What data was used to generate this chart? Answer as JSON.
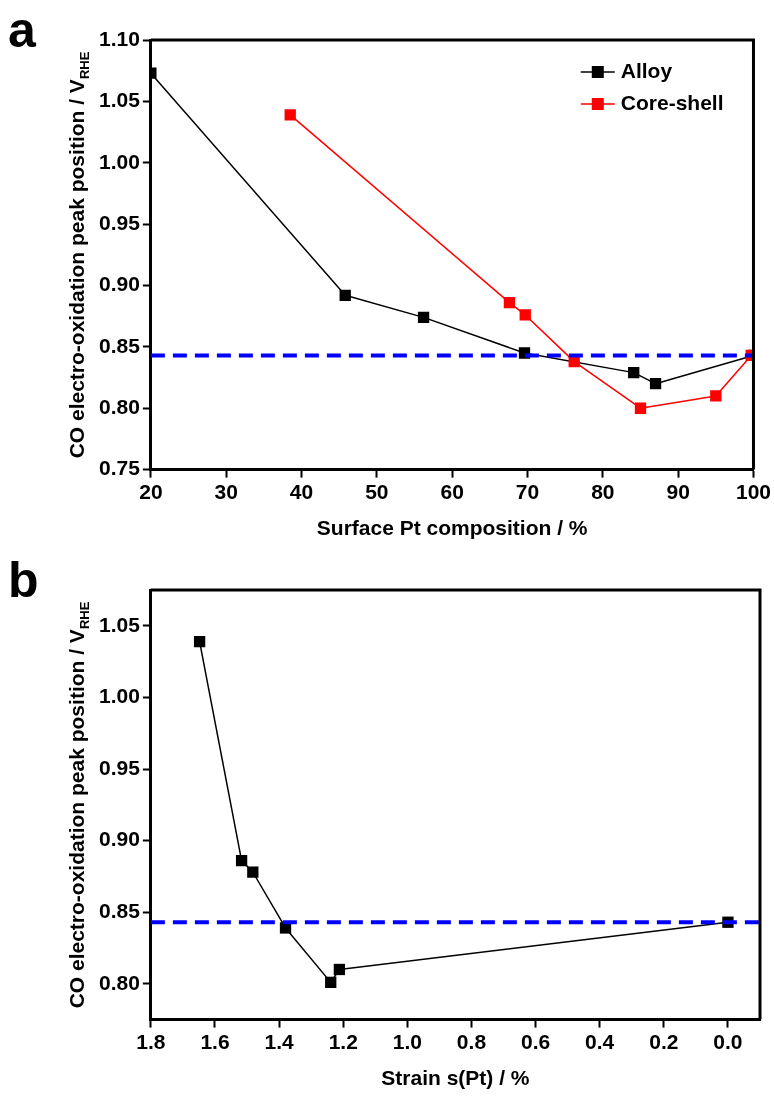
{
  "chart_data": [
    {
      "type": "line",
      "xlabel": "Surface Pt composition / %",
      "ylabel": "CO electro-oxidation peak position / V$_{RHE}$",
      "annotations": [
        "a"
      ],
      "xlim": [
        20,
        100
      ],
      "xticks": [
        20,
        30,
        40,
        50,
        60,
        70,
        80,
        90,
        100
      ],
      "ylim": [
        0.75,
        1.1
      ],
      "yticks": [
        0.75,
        {
          "value": 0.8,
          "label": "0.80"
        },
        0.85,
        {
          "value": 0.9,
          "label": "0.90"
        },
        0.95,
        {
          "value": 1.0,
          "label": "1.00"
        },
        1.05,
        {
          "value": 1.1,
          "label": "1.10"
        }
      ],
      "marker": "square",
      "legend": "top right",
      "grid": false,
      "ref_lines": [
        {
          "axis": "y",
          "value": 0.843,
          "color": "#0000ff",
          "line_style": "dashed"
        }
      ],
      "series": [
        {
          "name": "Alloy",
          "color": "#000000",
          "x": [
            20,
            45.8,
            56.2,
            69.6,
            84.1,
            87.0,
            100
          ],
          "values": [
            1.073,
            0.892,
            0.874,
            0.845,
            0.829,
            0.82,
            0.843
          ]
        },
        {
          "name": "Core-shell",
          "color": "#ff0000",
          "x": [
            38.5,
            67.6,
            69.7,
            76.2,
            85.0,
            95.0,
            99.7
          ],
          "values": [
            1.039,
            0.886,
            0.876,
            0.838,
            0.8,
            0.81,
            0.843
          ]
        }
      ]
    },
    {
      "type": "line",
      "xlabel": "Strain s(Pt) / %",
      "ylabel": "CO electro-oxidation peak position / V$_{RHE}$",
      "annotations": [
        "b"
      ],
      "xlim": [
        1.8,
        -0.1
      ],
      "xticks": [
        1.8,
        1.6,
        1.4,
        1.2,
        {
          "value": 1.0,
          "label": "1.0"
        },
        0.8,
        0.6,
        0.4,
        0.2,
        {
          "value": 0,
          "label": "0.0"
        }
      ],
      "ylim": [
        0.775,
        1.075
      ],
      "yticks": [
        {
          "value": 0.8,
          "label": "0.80"
        },
        0.85,
        {
          "value": 0.9,
          "label": "0.90"
        },
        0.95,
        {
          "value": 1.0,
          "label": "1.00"
        },
        1.05
      ],
      "marker": "square",
      "grid": false,
      "ref_lines": [
        {
          "axis": "y",
          "value": 0.843,
          "color": "#0000ff",
          "line_style": "dashed"
        }
      ],
      "series": [
        {
          "color": "#000000",
          "x": [
            1.648,
            1.517,
            1.482,
            1.38,
            1.239,
            1.212,
            0.0
          ],
          "values": [
            1.039,
            0.886,
            0.878,
            0.839,
            0.801,
            0.81,
            0.843
          ]
        }
      ]
    }
  ]
}
